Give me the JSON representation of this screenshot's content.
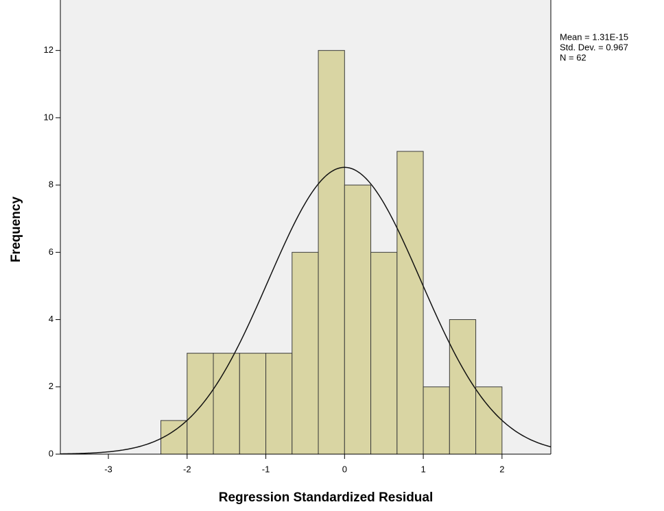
{
  "chart_data": {
    "type": "histogram",
    "x_label": "Regression Standardized Residual",
    "y_label": "Frequency",
    "bins": [
      -2.3333,
      -2.0,
      -1.6667,
      -1.3333,
      -1.0,
      -0.6667,
      -0.3333,
      0.0,
      0.3333,
      0.6667,
      1.0,
      1.3333,
      1.6667,
      2.0
    ],
    "counts": [
      1,
      3,
      3,
      3,
      3,
      6,
      12,
      8,
      6,
      9,
      2,
      4,
      2
    ],
    "color": "#d9d5a3",
    "edge_color": "#3a3a3a",
    "xlim": [
      -3.61,
      2.62
    ],
    "xticks": [
      -3,
      -2,
      -1,
      0,
      1,
      2
    ],
    "ylim": [
      0,
      13.5
    ],
    "yticks": [
      0,
      2,
      4,
      6,
      8,
      10,
      12
    ],
    "normal_curve": true,
    "stats": {
      "mean": {
        "value": 1.31e-15,
        "label": "Mean = 1.31E-15"
      },
      "sd": {
        "value": 0.967,
        "label": "Std. Dev. = 0.967"
      },
      "n": {
        "value": 62,
        "label": "N = 62"
      }
    }
  }
}
